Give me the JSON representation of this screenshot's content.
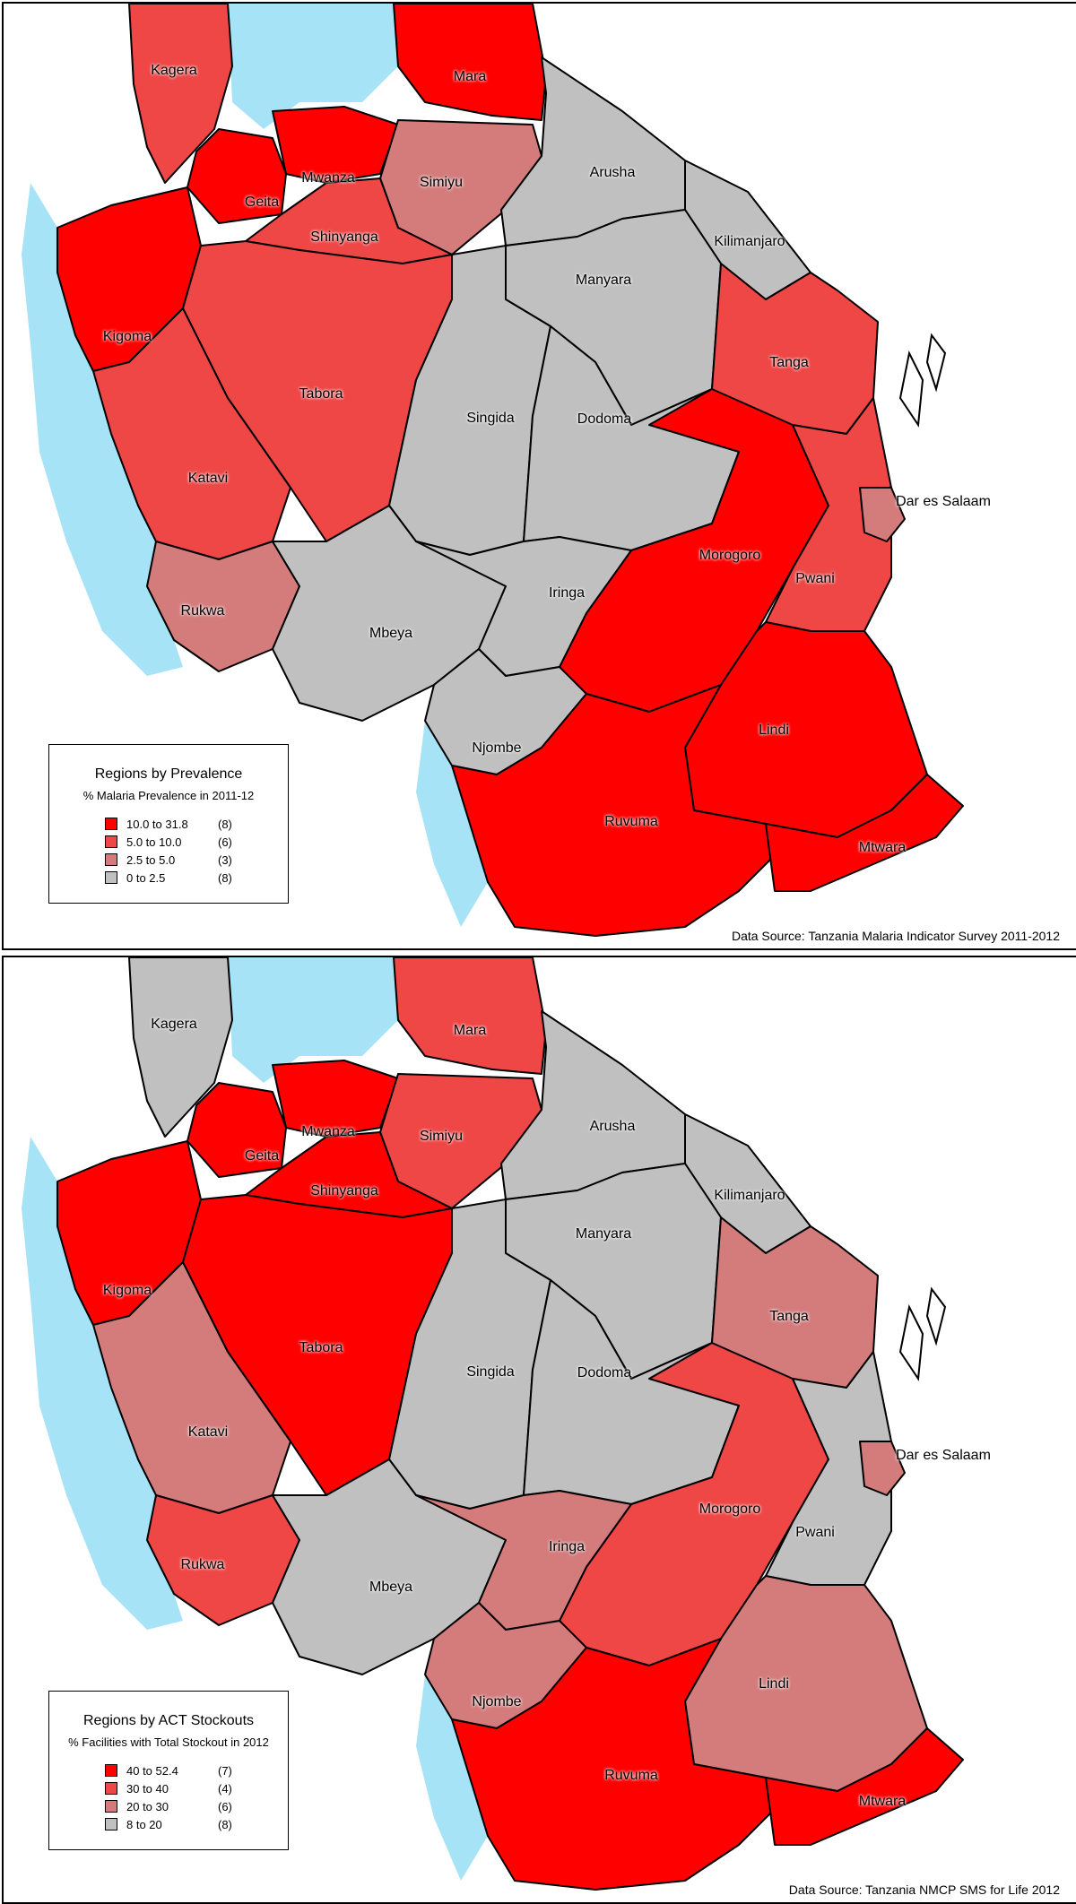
{
  "colors": {
    "water": "#a7e3f7",
    "bin1": "#ff0000",
    "bin2": "#ef4646",
    "bin3": "#d47c7c",
    "bin4": "#c0c0c0"
  },
  "maps": [
    {
      "legend": {
        "title": "Regions by Prevalence",
        "subtitle": "% Malaria Prevalence in 2011-12",
        "items": [
          {
            "range": "10.0 to 31.8",
            "count": "(8)"
          },
          {
            "range": "5.0 to 10.0",
            "count": "(6)"
          },
          {
            "range": "2.5 to  5.0",
            "count": "(3)"
          },
          {
            "range": "0   to  2.5",
            "count": "(8)"
          }
        ]
      },
      "source": "Data Source: Tanzania Malaria Indicator Survey 2011-2012",
      "regions": [
        {
          "name": "Kagera",
          "bin": 2
        },
        {
          "name": "Mara",
          "bin": 1
        },
        {
          "name": "Geita",
          "bin": 1
        },
        {
          "name": "Mwanza",
          "bin": 1
        },
        {
          "name": "Simiyu",
          "bin": 3
        },
        {
          "name": "Shinyanga",
          "bin": 2
        },
        {
          "name": "Arusha",
          "bin": 4
        },
        {
          "name": "Kilimanjaro",
          "bin": 4
        },
        {
          "name": "Manyara",
          "bin": 4
        },
        {
          "name": "Kigoma",
          "bin": 1
        },
        {
          "name": "Tabora",
          "bin": 2
        },
        {
          "name": "Singida",
          "bin": 4
        },
        {
          "name": "Dodoma",
          "bin": 4
        },
        {
          "name": "Tanga",
          "bin": 2
        },
        {
          "name": "Katavi",
          "bin": 2
        },
        {
          "name": "Morogoro",
          "bin": 1
        },
        {
          "name": "Pwani",
          "bin": 2
        },
        {
          "name": "Dar es Salaam",
          "bin": 3
        },
        {
          "name": "Rukwa",
          "bin": 3
        },
        {
          "name": "Mbeya",
          "bin": 4
        },
        {
          "name": "Iringa",
          "bin": 4
        },
        {
          "name": "Njombe",
          "bin": 4
        },
        {
          "name": "Lindi",
          "bin": 1
        },
        {
          "name": "Ruvuma",
          "bin": 1
        },
        {
          "name": "Mtwara",
          "bin": 1
        }
      ]
    },
    {
      "legend": {
        "title": "Regions by ACT Stockouts",
        "subtitle": "% Facilities with Total Stockout in 2012",
        "items": [
          {
            "range": "40 to 52.4",
            "count": "(7)"
          },
          {
            "range": "30 to 40",
            "count": "(4)"
          },
          {
            "range": "20 to 30",
            "count": "(6)"
          },
          {
            "range": "8 to 20",
            "count": "(8)"
          }
        ]
      },
      "source": "Data Source: Tanzania NMCP SMS for Life 2012",
      "regions": [
        {
          "name": "Kagera",
          "bin": 4
        },
        {
          "name": "Mara",
          "bin": 2
        },
        {
          "name": "Geita",
          "bin": 1
        },
        {
          "name": "Mwanza",
          "bin": 1
        },
        {
          "name": "Simiyu",
          "bin": 2
        },
        {
          "name": "Shinyanga",
          "bin": 1
        },
        {
          "name": "Arusha",
          "bin": 4
        },
        {
          "name": "Kilimanjaro",
          "bin": 4
        },
        {
          "name": "Manyara",
          "bin": 4
        },
        {
          "name": "Kigoma",
          "bin": 1
        },
        {
          "name": "Tabora",
          "bin": 1
        },
        {
          "name": "Singida",
          "bin": 4
        },
        {
          "name": "Dodoma",
          "bin": 4
        },
        {
          "name": "Tanga",
          "bin": 3
        },
        {
          "name": "Katavi",
          "bin": 3
        },
        {
          "name": "Morogoro",
          "bin": 2
        },
        {
          "name": "Pwani",
          "bin": 4
        },
        {
          "name": "Dar es Salaam",
          "bin": 3
        },
        {
          "name": "Rukwa",
          "bin": 2
        },
        {
          "name": "Mbeya",
          "bin": 4
        },
        {
          "name": "Iringa",
          "bin": 3
        },
        {
          "name": "Njombe",
          "bin": 3
        },
        {
          "name": "Lindi",
          "bin": 3
        },
        {
          "name": "Ruvuma",
          "bin": 1
        },
        {
          "name": "Mtwara",
          "bin": 1
        }
      ]
    }
  ]
}
